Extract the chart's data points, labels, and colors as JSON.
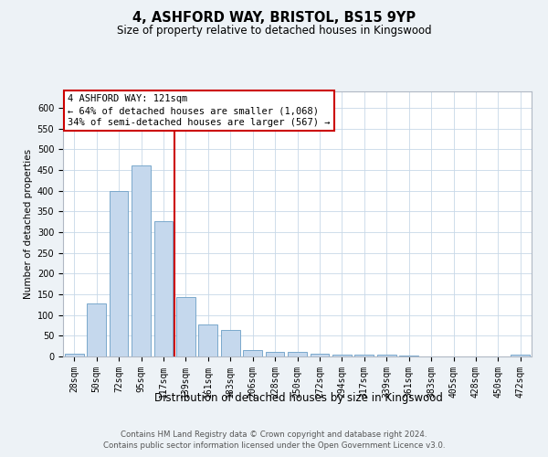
{
  "title1": "4, ASHFORD WAY, BRISTOL, BS15 9YP",
  "title2": "Size of property relative to detached houses in Kingswood",
  "xlabel": "Distribution of detached houses by size in Kingswood",
  "ylabel": "Number of detached properties",
  "categories": [
    "28sqm",
    "50sqm",
    "72sqm",
    "95sqm",
    "117sqm",
    "139sqm",
    "161sqm",
    "183sqm",
    "206sqm",
    "228sqm",
    "250sqm",
    "272sqm",
    "294sqm",
    "317sqm",
    "339sqm",
    "361sqm",
    "383sqm",
    "405sqm",
    "428sqm",
    "450sqm",
    "472sqm"
  ],
  "bar_heights": [
    7,
    128,
    400,
    462,
    327,
    143,
    78,
    65,
    16,
    11,
    12,
    6,
    5,
    5,
    4,
    3,
    1,
    1,
    1,
    1,
    4
  ],
  "bar_color": "#c5d8ed",
  "bar_edge_color": "#7aa8cc",
  "vline_color": "#cc0000",
  "vline_pos": 4.5,
  "annotation_text": "4 ASHFORD WAY: 121sqm\n← 64% of detached houses are smaller (1,068)\n34% of semi-detached houses are larger (567) →",
  "ylim_max": 640,
  "yticks": [
    0,
    50,
    100,
    150,
    200,
    250,
    300,
    350,
    400,
    450,
    500,
    550,
    600
  ],
  "footer1": "Contains HM Land Registry data © Crown copyright and database right 2024.",
  "footer2": "Contains public sector information licensed under the Open Government Licence v3.0.",
  "bg_color": "#edf2f6",
  "plot_bg_color": "#ffffff",
  "grid_color": "#c8d8e8",
  "title1_fontsize": 10.5,
  "title2_fontsize": 8.5,
  "ylabel_fontsize": 7.5,
  "xlabel_fontsize": 8.5,
  "tick_fontsize": 7,
  "annot_fontsize": 7.5
}
